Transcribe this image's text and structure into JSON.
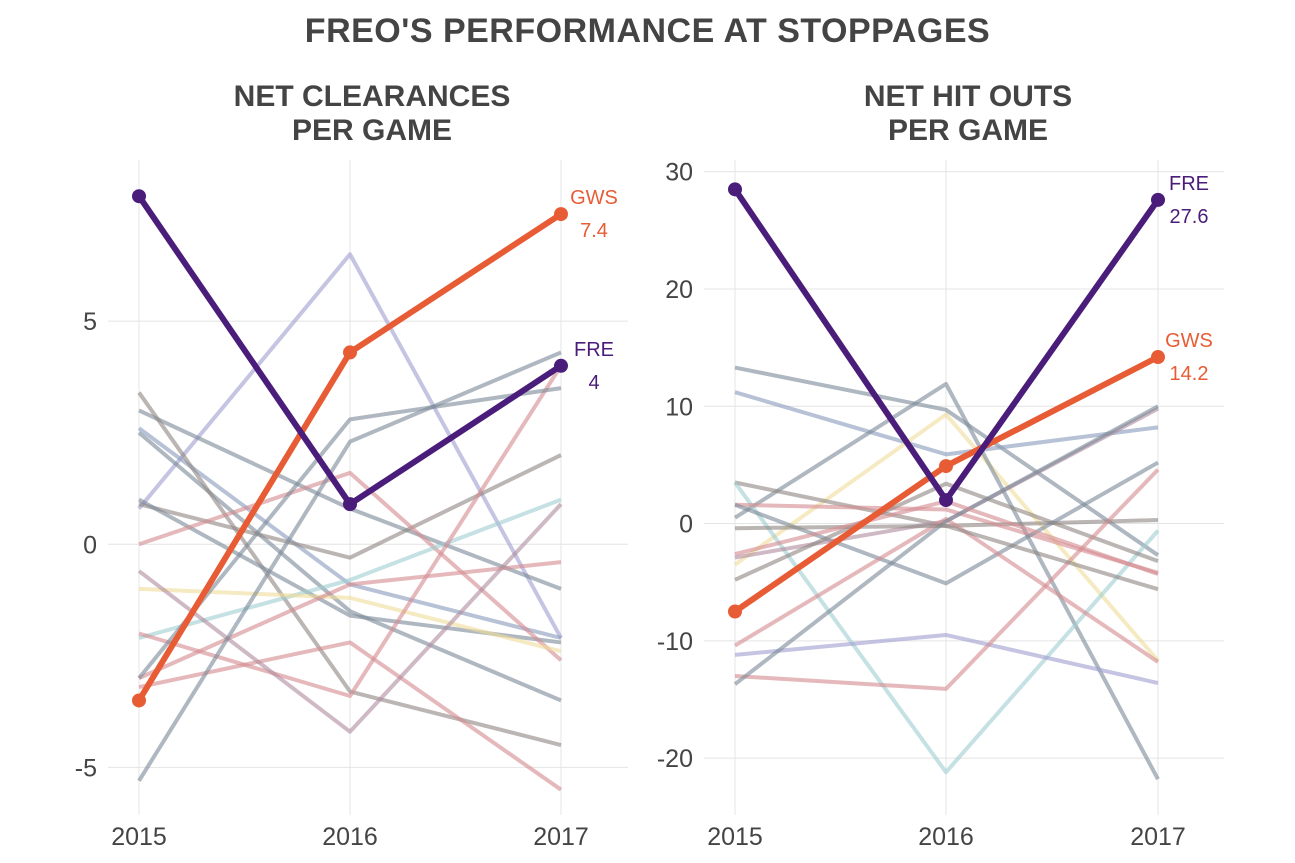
{
  "title": "FREO'S PERFORMANCE AT STOPPAGES",
  "colors": {
    "fre": "#4a1d7a",
    "gws": "#e85c35"
  },
  "chart_data": [
    {
      "type": "line",
      "title": "NET CLEARANCES\nPER GAME",
      "x": [
        "2015",
        "2016",
        "2017"
      ],
      "ylim": [
        -6,
        8.5
      ],
      "yticks": [
        -5,
        0,
        5
      ],
      "yticklabels": [
        "-5",
        "0",
        "5"
      ],
      "grid": true,
      "highlighted": [
        {
          "name": "FRE",
          "label": "FRE",
          "value_label": "4",
          "color": "#4a1d7a",
          "values": [
            7.8,
            0.9,
            4.0
          ]
        },
        {
          "name": "GWS",
          "label": "GWS",
          "value_label": "7.4",
          "color": "#e85c35",
          "values": [
            -3.5,
            4.3,
            7.4
          ]
        }
      ],
      "background": [
        {
          "color": "#9f9ccf",
          "values": [
            0.8,
            6.5,
            -2.1
          ]
        },
        {
          "color": "#7a8898",
          "values": [
            3.0,
            0.8,
            -1.0
          ]
        },
        {
          "color": "#7a8898",
          "values": [
            2.5,
            -1.5,
            -3.5
          ]
        },
        {
          "color": "#8899bb",
          "values": [
            2.6,
            -0.9,
            -2.1
          ]
        },
        {
          "color": "#8d8582",
          "values": [
            3.4,
            -3.3,
            -4.5
          ]
        },
        {
          "color": "#8d8582",
          "values": [
            0.9,
            -0.3,
            2.0
          ]
        },
        {
          "color": "#7a8898",
          "values": [
            1.0,
            -1.6,
            -2.2
          ]
        },
        {
          "color": "#d48a8f",
          "values": [
            0.0,
            1.6,
            -2.6
          ]
        },
        {
          "color": "#9fcdd0",
          "values": [
            -2.1,
            -0.8,
            1.0
          ]
        },
        {
          "color": "#f0dc9a",
          "values": [
            -1.0,
            -1.2,
            -2.4
          ]
        },
        {
          "color": "#d48a8f",
          "values": [
            -2.0,
            -3.4,
            4.0
          ]
        },
        {
          "color": "#d48a8f",
          "values": [
            -3.0,
            -0.9,
            -0.4
          ]
        },
        {
          "color": "#d48a8f",
          "values": [
            -3.2,
            -2.2,
            -5.5
          ]
        },
        {
          "color": "#ad8a9c",
          "values": [
            -0.6,
            -4.2,
            0.9
          ]
        },
        {
          "color": "#7a8898",
          "values": [
            -3.0,
            2.8,
            3.5
          ]
        },
        {
          "color": "#7a8898",
          "values": [
            -5.3,
            2.3,
            4.3
          ]
        }
      ]
    },
    {
      "type": "line",
      "title": "NET HIT OUTS\nPER GAME",
      "x": [
        "2015",
        "2016",
        "2017"
      ],
      "ylim": [
        -24,
        31
      ],
      "yticks": [
        -20,
        -10,
        0,
        10,
        20,
        30
      ],
      "yticklabels": [
        "-20",
        "-10",
        "0",
        "10",
        "20",
        "30"
      ],
      "grid": true,
      "highlighted": [
        {
          "name": "FRE",
          "label": "FRE",
          "value_label": "27.6",
          "color": "#4a1d7a",
          "values": [
            28.5,
            2.0,
            27.6
          ]
        },
        {
          "name": "GWS",
          "label": "GWS",
          "value_label": "14.2",
          "color": "#e85c35",
          "values": [
            -7.5,
            4.9,
            14.2
          ]
        }
      ],
      "background": [
        {
          "color": "#7a8898",
          "values": [
            13.3,
            9.7,
            -2.7
          ]
        },
        {
          "color": "#8899bb",
          "values": [
            11.2,
            5.9,
            8.2
          ]
        },
        {
          "color": "#f0dc9a",
          "values": [
            -3.5,
            9.3,
            -11.7
          ]
        },
        {
          "color": "#7a8898",
          "values": [
            0.5,
            11.9,
            -21.8
          ]
        },
        {
          "color": "#8d8582",
          "values": [
            3.5,
            -0.2,
            0.3
          ]
        },
        {
          "color": "#9fcdd0",
          "values": [
            3.5,
            -21.2,
            -0.6
          ]
        },
        {
          "color": "#d48a8f",
          "values": [
            1.6,
            1.2,
            -4.2
          ]
        },
        {
          "color": "#7a8898",
          "values": [
            1.6,
            -5.1,
            5.2
          ]
        },
        {
          "color": "#ad8a9c",
          "values": [
            -2.9,
            0.2,
            9.8
          ]
        },
        {
          "color": "#8d8582",
          "values": [
            -4.8,
            3.4,
            -3.2
          ]
        },
        {
          "color": "#9f9ccf",
          "values": [
            -11.2,
            -9.5,
            -13.6
          ]
        },
        {
          "color": "#d48a8f",
          "values": [
            -13.0,
            -14.1,
            4.6
          ]
        },
        {
          "color": "#d48a8f",
          "values": [
            -10.4,
            0.4,
            -11.8
          ]
        },
        {
          "color": "#7a8898",
          "values": [
            -13.7,
            0.2,
            10.0
          ]
        },
        {
          "color": "#8d8582",
          "values": [
            -0.4,
            -0.2,
            -5.6
          ]
        },
        {
          "color": "#d48a8f",
          "values": [
            -2.6,
            1.9,
            -4.3
          ]
        }
      ]
    }
  ]
}
